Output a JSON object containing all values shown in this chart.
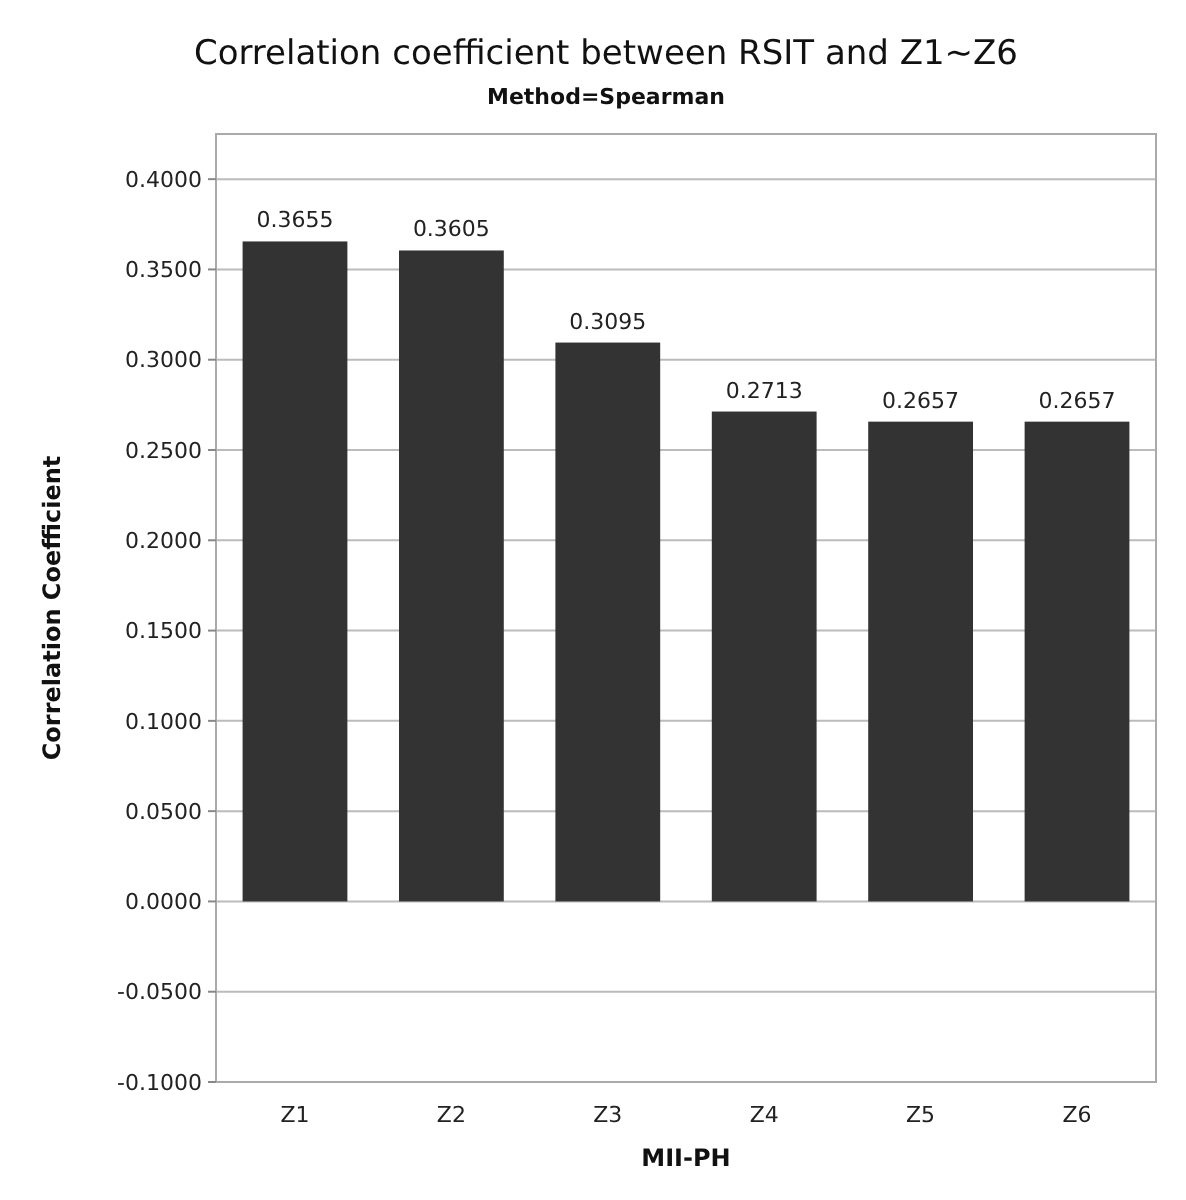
{
  "chart_data": {
    "type": "bar",
    "title": "Correlation coefficient between RSIT and Z1~Z6",
    "subtitle": "Method=Spearman",
    "xlabel": "MII-PH",
    "ylabel": "Correlation Coefficient",
    "categories": [
      "Z1",
      "Z2",
      "Z3",
      "Z4",
      "Z5",
      "Z6"
    ],
    "values": [
      0.3655,
      0.3605,
      0.3095,
      0.2713,
      0.2657,
      0.2657
    ],
    "color": "#333333",
    "data_labels": true,
    "ylim": [
      -0.1,
      0.425
    ],
    "yticks": [
      {
        "value": -0.1,
        "label": "-0.1000"
      },
      {
        "value": -0.05,
        "label": "-0.0500"
      },
      {
        "value": 0,
        "label": "0.0000"
      },
      {
        "value": 0.05,
        "label": "0.0500"
      },
      {
        "value": 0.1,
        "label": "0.1000"
      },
      {
        "value": 0.15,
        "label": "0.1500"
      },
      {
        "value": 0.2,
        "label": "0.2000"
      },
      {
        "value": 0.25,
        "label": "0.2500"
      },
      {
        "value": 0.3,
        "label": "0.3000"
      },
      {
        "value": 0.35,
        "label": "0.3500"
      },
      {
        "value": 0.4,
        "label": "0.4000"
      }
    ],
    "grid": "y"
  }
}
